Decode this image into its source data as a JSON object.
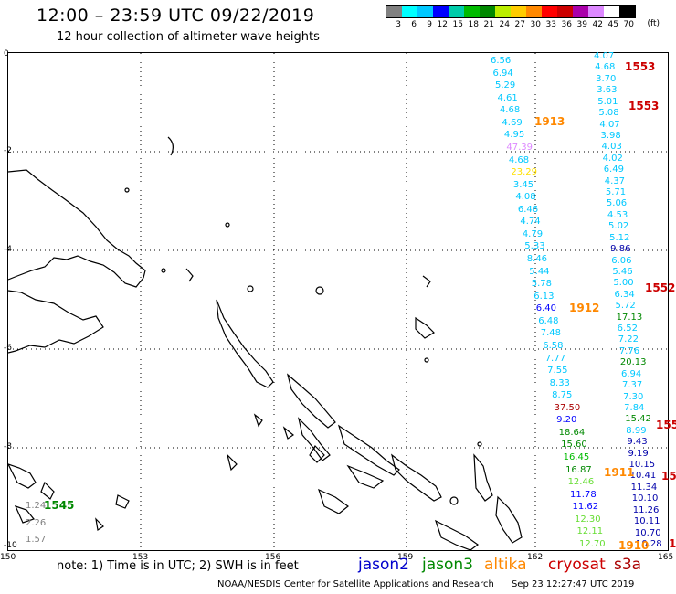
{
  "header": {
    "title": "12:00 – 23:59 UTC 09/22/2019",
    "subtitle": "12 hour collection of altimeter wave heights"
  },
  "colorbar": {
    "unit": "(ft)",
    "labels": [
      "3",
      "6",
      "9",
      "12",
      "15",
      "18",
      "21",
      "24",
      "27",
      "30",
      "33",
      "36",
      "39",
      "42",
      "45",
      "70"
    ],
    "colors": [
      "#808080",
      "#00ffff",
      "#00c8ff",
      "#0000ff",
      "#00ccaa",
      "#00bb00",
      "#008800",
      "#bbee00",
      "#ffcc00",
      "#ff8800",
      "#ff0000",
      "#cc0000",
      "#aa00aa",
      "#dd88ff",
      "#ffffff",
      "#000000"
    ]
  },
  "axes": {
    "lat_labels": [
      "0",
      "-2",
      "-4",
      "-6",
      "-8",
      "-10"
    ],
    "lon_labels": [
      "150",
      "153",
      "156",
      "159",
      "162",
      "165"
    ]
  },
  "tracks": {
    "track_a": {
      "values": [
        "6.56",
        "6.94",
        "5.29",
        "4.61",
        "4.68",
        "4.69",
        "4.95",
        "47.39",
        "4.68",
        "23.29",
        "3.45",
        "4.08",
        "6.46",
        "4.74",
        "4.79",
        "5.33",
        "8.46",
        "5.44",
        "5.78",
        "6.13",
        "6.40",
        "6.48",
        "7.48",
        "6.58",
        "7.77",
        "7.55",
        "8.33",
        "8.75",
        "37.50",
        "9.20",
        "18.64",
        "15.60",
        "16.45",
        "16.87",
        "12.46",
        "11.78",
        "11.62",
        "12.30",
        "12.11",
        "12.70"
      ],
      "colors": [
        "#00c8ff",
        "#00c8ff",
        "#00c8ff",
        "#00c8ff",
        "#00c8ff",
        "#00c8ff",
        "#00c8ff",
        "#dd88ff",
        "#00c8ff",
        "#ffe000",
        "#00c8ff",
        "#00c8ff",
        "#00c8ff",
        "#00c8ff",
        "#00c8ff",
        "#00c8ff",
        "#00c8ff",
        "#00c8ff",
        "#00c8ff",
        "#00c8ff",
        "#0000ff",
        "#00c8ff",
        "#00c8ff",
        "#00c8ff",
        "#00c8ff",
        "#00c8ff",
        "#00c8ff",
        "#00c8ff",
        "#aa0000",
        "#0000ff",
        "#008800",
        "#008800",
        "#00bb00",
        "#008800",
        "#66dd33",
        "#0000ff",
        "#0000ff",
        "#66dd33",
        "#66dd33",
        "#66dd33"
      ]
    },
    "track_b": {
      "values": [
        "4.07",
        "4.68",
        "3.70",
        "3.63",
        "5.01",
        "5.08",
        "4.07",
        "3.98",
        "4.03",
        "4.02",
        "6.49",
        "4.37",
        "5.71",
        "5.06",
        "4.53",
        "5.02",
        "5.12",
        "9.86",
        "6.06",
        "5.46",
        "5.00",
        "6.34",
        "5.72",
        "17.13",
        "6.52",
        "7.22",
        "7.76",
        "20.13",
        "6.94",
        "7.37",
        "7.30",
        "7.84",
        "15.42",
        "8.99",
        "9.43",
        "9.19",
        "10.15",
        "10.41",
        "11.34",
        "10.10",
        "11.26",
        "10.11",
        "10.70",
        "10.28"
      ],
      "colors": [
        "#00c8ff",
        "#00c8ff",
        "#00c8ff",
        "#00c8ff",
        "#00c8ff",
        "#00c8ff",
        "#00c8ff",
        "#00c8ff",
        "#00c8ff",
        "#00c8ff",
        "#00c8ff",
        "#00c8ff",
        "#00c8ff",
        "#00c8ff",
        "#00c8ff",
        "#00c8ff",
        "#00c8ff",
        "#0000aa",
        "#00c8ff",
        "#00c8ff",
        "#00c8ff",
        "#00c8ff",
        "#00c8ff",
        "#008800",
        "#00c8ff",
        "#00c8ff",
        "#00c8ff",
        "#008800",
        "#00c8ff",
        "#00c8ff",
        "#00c8ff",
        "#00c8ff",
        "#008800",
        "#00c8ff",
        "#0000aa",
        "#0000aa",
        "#0000aa",
        "#0000aa",
        "#0000aa",
        "#0000aa",
        "#0000aa",
        "#0000aa",
        "#0000aa",
        "#0000aa"
      ]
    },
    "track_c": {
      "values": [
        "1.24",
        "2.26",
        "1.57"
      ],
      "colors": [
        "#808080",
        "#808080",
        "#808080"
      ]
    }
  },
  "pass_times": [
    {
      "label": "1553",
      "color": "#cc0000"
    },
    {
      "label": "1553",
      "color": "#cc0000"
    },
    {
      "label": "1913",
      "color": "#ff8800"
    },
    {
      "label": "1912",
      "color": "#ff8800"
    },
    {
      "label": "1552",
      "color": "#cc0000"
    },
    {
      "label": "155",
      "color": "#cc0000"
    },
    {
      "label": "1911",
      "color": "#ff8800"
    },
    {
      "label": "155",
      "color": "#cc0000"
    },
    {
      "label": "1910",
      "color": "#ff8800"
    },
    {
      "label": "1",
      "color": "#cc0000"
    },
    {
      "label": "1545",
      "color": "#008800"
    }
  ],
  "footer": {
    "note": "note:  1) Time is in UTC;  2) SWH is in feet",
    "satellites": [
      {
        "name": "jason2",
        "color": "#0000cc"
      },
      {
        "name": "jason3",
        "color": "#008800"
      },
      {
        "name": "altika",
        "color": "#ff8800"
      },
      {
        "name": "cryosat",
        "color": "#cc0000"
      },
      {
        "name": "s3a",
        "color": "#aa0000"
      }
    ],
    "credit": "NOAA/NESDIS Center for Satellite Applications and Research",
    "timestamp": "Sep 23 12:27:47 UTC 2019"
  }
}
